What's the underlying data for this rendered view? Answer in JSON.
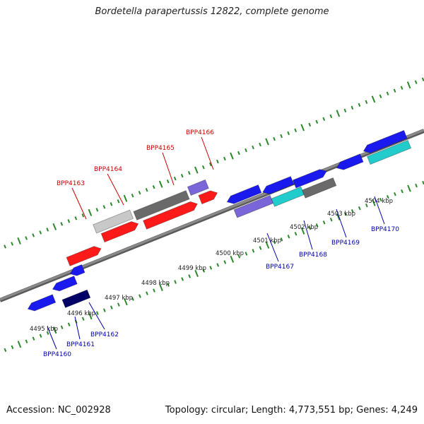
{
  "title": "Bordetella parapertussis 12822, complete genome",
  "footer": {
    "accession": "Accession: NC_002928",
    "topology": "Topology: circular; Length: 4,773,551 bp; Genes: 4,249"
  },
  "colors": {
    "backbone": "#8a8a8a",
    "tick": "#2a8a2a",
    "forward_label": "#cc0000",
    "reverse_label": "#0000aa",
    "red": "#ff1a1a",
    "blue": "#1a1aee",
    "navy": "#000066",
    "purple": "#7a66d8",
    "cyan": "#22cccc",
    "darkgray": "#6a6a6a",
    "lightgray": "#c8c8c8"
  },
  "kbp_labels": [
    "4495 kbp",
    "4496 kbp",
    "4497 kbp",
    "4498 kbp",
    "4499 kbp",
    "4500 kbp",
    "4501 kbp",
    "4502 kbp",
    "4503 kbp",
    "4504 kbp"
  ],
  "forward_genes": [
    "BPP4163",
    "BPP4164",
    "BPP4165",
    "BPP4166"
  ],
  "reverse_genes": [
    "BPP4160",
    "BPP4161",
    "BPP4162",
    "BPP4167",
    "BPP4168",
    "BPP4169",
    "BPP4170"
  ]
}
